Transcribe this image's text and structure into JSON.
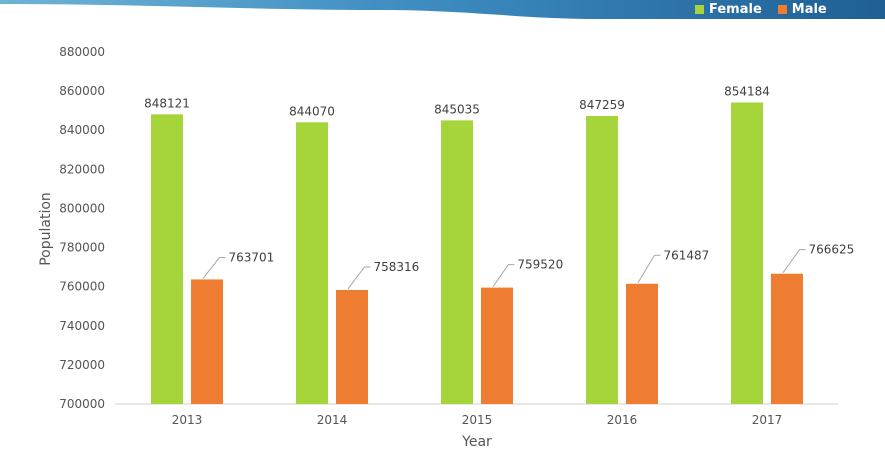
{
  "chart_data": {
    "type": "bar",
    "categories": [
      "2013",
      "2014",
      "2015",
      "2016",
      "2017"
    ],
    "series": [
      {
        "name": "Female",
        "color": "#a6d53b",
        "values": [
          848121,
          844070,
          845035,
          847259,
          854184
        ]
      },
      {
        "name": "Male",
        "color": "#ee7d31",
        "values": [
          763701,
          758316,
          759520,
          761487,
          766625
        ]
      }
    ],
    "xlabel": "Year",
    "ylabel": "Population",
    "ylim": [
      700000,
      880000
    ],
    "yticks": [
      "700000",
      "720000",
      "740000",
      "760000",
      "780000",
      "800000",
      "820000",
      "840000",
      "860000",
      "880000"
    ],
    "data_labels": {
      "female": [
        "848121",
        "844070",
        "845035",
        "847259",
        "854184"
      ],
      "male": [
        "763701",
        "758316",
        "759520",
        "761487",
        "766625"
      ]
    },
    "legend_position": "top-right",
    "grid": false
  }
}
